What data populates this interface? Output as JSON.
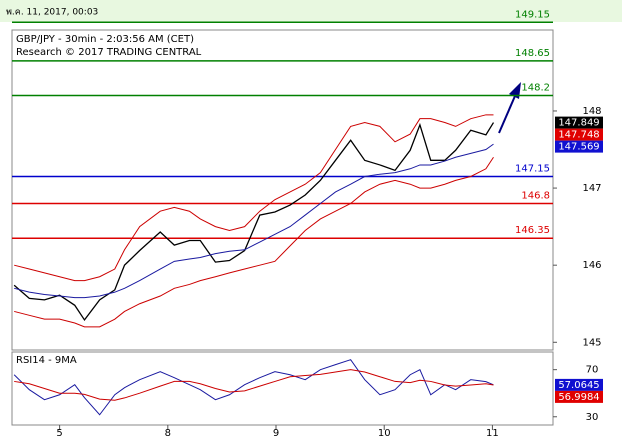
{
  "timestamp": "พ.ค. 11, 2017, 00:03",
  "chart_data": [
    {
      "type": "line",
      "title": "GBP/JPY - 30min - 2:03:56 AM (CET)",
      "subtitle": "Research © 2017 TRADING CENTRAL",
      "x": [
        -0.42,
        -0.28,
        -0.14,
        0,
        0.14,
        0.23,
        0.37,
        0.51,
        0.6,
        0.74,
        0.93,
        1.06,
        1.2,
        1.3,
        1.44,
        1.57,
        1.71,
        1.85,
        1.99,
        2.13,
        2.27,
        2.41,
        2.55,
        2.69,
        2.82,
        2.96,
        3.1,
        3.24,
        3.33,
        3.43,
        3.56,
        3.66,
        3.8,
        3.94,
        4.01
      ],
      "xlim": [
        -0.44,
        4.56
      ],
      "ylim": [
        144.9,
        149.05
      ],
      "yticks": [
        145,
        146,
        147,
        148
      ],
      "series": [
        {
          "color": "#000000",
          "values": [
            145.74,
            145.57,
            145.55,
            145.61,
            145.48,
            145.29,
            145.55,
            145.68,
            146.0,
            146.19,
            146.43,
            146.26,
            146.32,
            146.32,
            146.04,
            146.06,
            146.19,
            146.65,
            146.69,
            146.78,
            146.91,
            147.1,
            147.36,
            147.62,
            147.36,
            147.3,
            147.23,
            147.49,
            147.82,
            147.36,
            147.36,
            147.49,
            147.75,
            147.69,
            147.85
          ]
        },
        {
          "color": "#cc0000",
          "values": [
            146.0,
            145.95,
            145.9,
            145.85,
            145.8,
            145.8,
            145.85,
            145.95,
            146.2,
            146.5,
            146.7,
            146.75,
            146.7,
            146.6,
            146.5,
            146.45,
            146.5,
            146.7,
            146.85,
            146.95,
            147.05,
            147.2,
            147.5,
            147.8,
            147.85,
            147.8,
            147.6,
            147.7,
            147.9,
            147.9,
            147.85,
            147.8,
            147.9,
            147.95,
            147.95
          ]
        },
        {
          "color": "#cc0000",
          "values": [
            145.4,
            145.35,
            145.3,
            145.3,
            145.25,
            145.2,
            145.2,
            145.3,
            145.4,
            145.5,
            145.6,
            145.7,
            145.75,
            145.8,
            145.85,
            145.9,
            145.95,
            146.0,
            146.05,
            146.25,
            146.45,
            146.6,
            146.7,
            146.8,
            146.95,
            147.05,
            147.1,
            147.05,
            147.0,
            147.0,
            147.05,
            147.1,
            147.15,
            147.25,
            147.4
          ]
        },
        {
          "color": "#1a1aa0",
          "values": [
            145.7,
            145.65,
            145.62,
            145.6,
            145.58,
            145.58,
            145.6,
            145.65,
            145.7,
            145.8,
            145.95,
            146.05,
            146.08,
            146.1,
            146.15,
            146.18,
            146.2,
            146.3,
            146.4,
            146.5,
            146.65,
            146.8,
            146.95,
            147.05,
            147.15,
            147.18,
            147.2,
            147.25,
            147.3,
            147.3,
            147.35,
            147.4,
            147.45,
            147.5,
            147.57
          ]
        }
      ],
      "levels": [
        {
          "value": 149.15,
          "color": "#008000"
        },
        {
          "value": 148.65,
          "color": "#008000"
        },
        {
          "value": 148.2,
          "color": "#008000"
        },
        {
          "value": 147.15,
          "color": "#0000cc"
        },
        {
          "value": 146.8,
          "color": "#dd0000"
        },
        {
          "value": 146.35,
          "color": "#dd0000"
        }
      ],
      "tags": [
        {
          "value": 147.849,
          "color": "#000000"
        },
        {
          "value": 147.748,
          "color": "#e00000"
        },
        {
          "value": 147.569,
          "color": "#1010d0"
        }
      ]
    },
    {
      "type": "line",
      "title": "RSI14 - 9MA",
      "x": [
        -0.42,
        -0.28,
        -0.14,
        0,
        0.14,
        0.23,
        0.37,
        0.51,
        0.6,
        0.74,
        0.93,
        1.06,
        1.2,
        1.3,
        1.44,
        1.57,
        1.71,
        1.85,
        1.99,
        2.13,
        2.27,
        2.41,
        2.55,
        2.69,
        2.82,
        2.96,
        3.1,
        3.24,
        3.33,
        3.43,
        3.56,
        3.66,
        3.8,
        3.94,
        4.01
      ],
      "xlim": [
        -0.44,
        4.56
      ],
      "ylim": [
        23,
        85
      ],
      "yticks": [
        30,
        70
      ],
      "xticks": [
        {
          "value": 0,
          "label": "5"
        },
        {
          "value": 1,
          "label": "8"
        },
        {
          "value": 2,
          "label": "9"
        },
        {
          "value": 3,
          "label": "10"
        },
        {
          "value": 4,
          "label": "11"
        }
      ],
      "series": [
        {
          "color": "#1a1aa0",
          "values": [
            65.7,
            53,
            44.5,
            48.7,
            57.2,
            46.2,
            31.7,
            48.7,
            54.7,
            61.5,
            68.3,
            63.2,
            57.2,
            53,
            44.5,
            48.7,
            57.2,
            63.2,
            68.3,
            65.7,
            61.5,
            70,
            74.3,
            78.5,
            61.5,
            48.7,
            53,
            65.7,
            70,
            48.7,
            57.2,
            53,
            61.5,
            59.8,
            57.1
          ]
        },
        {
          "color": "#cc0000",
          "values": [
            60,
            58,
            54,
            50,
            50,
            49,
            45,
            44,
            46,
            50,
            56,
            60,
            60,
            58,
            54,
            51,
            52,
            56,
            60,
            64,
            65,
            66,
            68,
            70,
            68,
            64,
            60,
            59,
            61,
            60,
            57,
            56,
            57,
            58,
            57
          ]
        }
      ],
      "tags": [
        {
          "value": 57.0645,
          "color": "#1010d0"
        },
        {
          "value": 56.9984,
          "color": "#e00000"
        }
      ]
    }
  ]
}
